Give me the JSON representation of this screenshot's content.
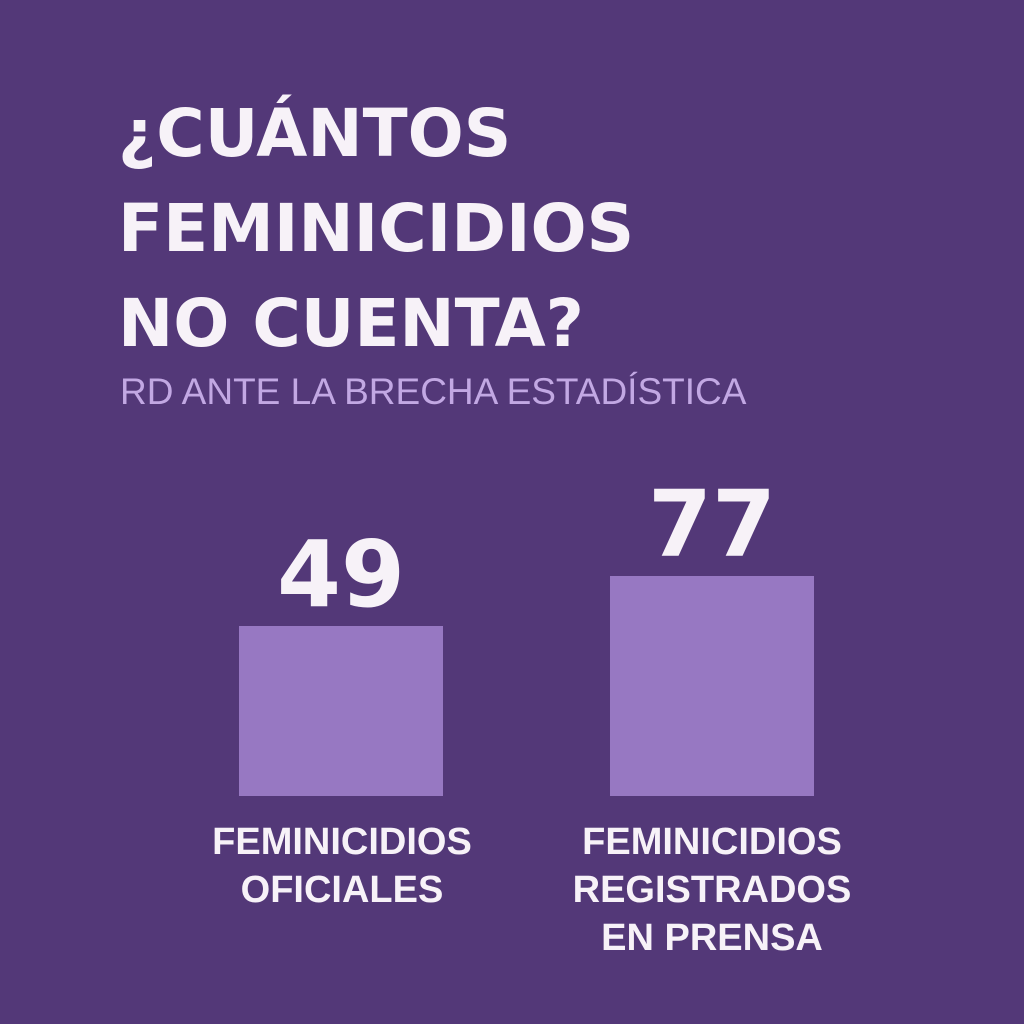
{
  "colors": {
    "background": "#533878",
    "bar": "#9778C2",
    "text": "#F7F2F8",
    "subtitle": "#C2A8E3"
  },
  "chart_data": {
    "type": "bar",
    "title_lines": [
      "¿CUÁNTOS",
      "FEMINICIDIOS",
      "NO CUENTA?"
    ],
    "subtitle": "RD ANTE LA BRECHA ESTADÍSTICA",
    "categories": [
      [
        "FEMINICIDIOS",
        "OFICIALES"
      ],
      [
        "FEMINICIDIOS",
        "REGISTRADOS",
        "EN PRENSA"
      ]
    ],
    "values": [
      49,
      77
    ],
    "data_labels": [
      "49",
      "77"
    ],
    "grid": false,
    "legend": "none"
  }
}
